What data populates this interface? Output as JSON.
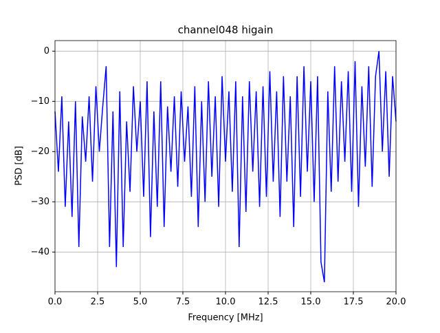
{
  "chart_data": {
    "type": "line",
    "title": "channel048 higain",
    "xlabel": "Frequency [MHz]",
    "ylabel": "PSD [dB]",
    "x": [
      0,
      0.2,
      0.4,
      0.6,
      0.8,
      1,
      1.2,
      1.4,
      1.6,
      1.8,
      2,
      2.2,
      2.4,
      2.6,
      2.8,
      3,
      3.2,
      3.4,
      3.6,
      3.8,
      4,
      4.2,
      4.4,
      4.6,
      4.8,
      5,
      5.2,
      5.4,
      5.6,
      5.8,
      6,
      6.2,
      6.4,
      6.6,
      6.8,
      7,
      7.2,
      7.4,
      7.6,
      7.8,
      8,
      8.2,
      8.4,
      8.6,
      8.8,
      9,
      9.2,
      9.4,
      9.6,
      9.8,
      10,
      10.2,
      10.4,
      10.6,
      10.8,
      11,
      11.2,
      11.4,
      11.6,
      11.8,
      12,
      12.2,
      12.4,
      12.6,
      12.8,
      13,
      13.2,
      13.4,
      13.6,
      13.8,
      14,
      14.2,
      14.4,
      14.6,
      14.8,
      15,
      15.2,
      15.4,
      15.6,
      15.8,
      16,
      16.2,
      16.4,
      16.6,
      16.8,
      17,
      17.2,
      17.4,
      17.6,
      17.8,
      18,
      18.2,
      18.4,
      18.6,
      18.8,
      19,
      19.2,
      19.4,
      19.6,
      19.8,
      20
    ],
    "series": [
      {
        "name": "channel048",
        "color": "#0000ff",
        "values": [
          -12,
          -24,
          -9,
          -31,
          -14,
          -33,
          -10,
          -39,
          -13,
          -22,
          -9,
          -26,
          -7,
          -20,
          -11,
          -3,
          -39,
          -12,
          -43,
          -8,
          -39,
          -14,
          -28,
          -7,
          -20,
          -10,
          -29,
          -6,
          -37,
          -12,
          -31,
          -6,
          -35,
          -11,
          -24,
          -9,
          -27,
          -8,
          -22,
          -11,
          -29,
          -7,
          -35,
          -10,
          -30,
          -6,
          -25,
          -9,
          -31,
          -5,
          -22,
          -8,
          -28,
          -6,
          -39,
          -9,
          -32,
          -6,
          -24,
          -8,
          -31,
          -7,
          -29,
          -4,
          -26,
          -8,
          -33,
          -5,
          -26,
          -9,
          -35,
          -5,
          -29,
          -3,
          -24,
          -6,
          -30,
          -5,
          -42,
          -46,
          -8,
          -28,
          -3,
          -26,
          -6,
          -22,
          -4,
          -28,
          -2,
          -31,
          -7,
          -23,
          -3,
          -27,
          -5,
          0,
          -20,
          -4,
          -25,
          -5,
          -14
        ]
      }
    ],
    "xlim": [
      0,
      20
    ],
    "ylim": [
      -47.9,
      2.1
    ],
    "xticks": [
      {
        "value": 0,
        "label": "0.0"
      },
      {
        "value": 2.5,
        "label": "2.5"
      },
      {
        "value": 5,
        "label": "5.0"
      },
      {
        "value": 7.5,
        "label": "7.5"
      },
      {
        "value": 10,
        "label": "10.0"
      },
      {
        "value": 12.5,
        "label": "12.5"
      },
      {
        "value": 15,
        "label": "15.0"
      },
      {
        "value": 17.5,
        "label": "17.5"
      },
      {
        "value": 20,
        "label": "20.0"
      }
    ],
    "yticks": [
      {
        "value": -40,
        "label": "−40"
      },
      {
        "value": -30,
        "label": "−30"
      },
      {
        "value": -20,
        "label": "−20"
      },
      {
        "value": -10,
        "label": "−10"
      },
      0
    ],
    "grid": true
  }
}
